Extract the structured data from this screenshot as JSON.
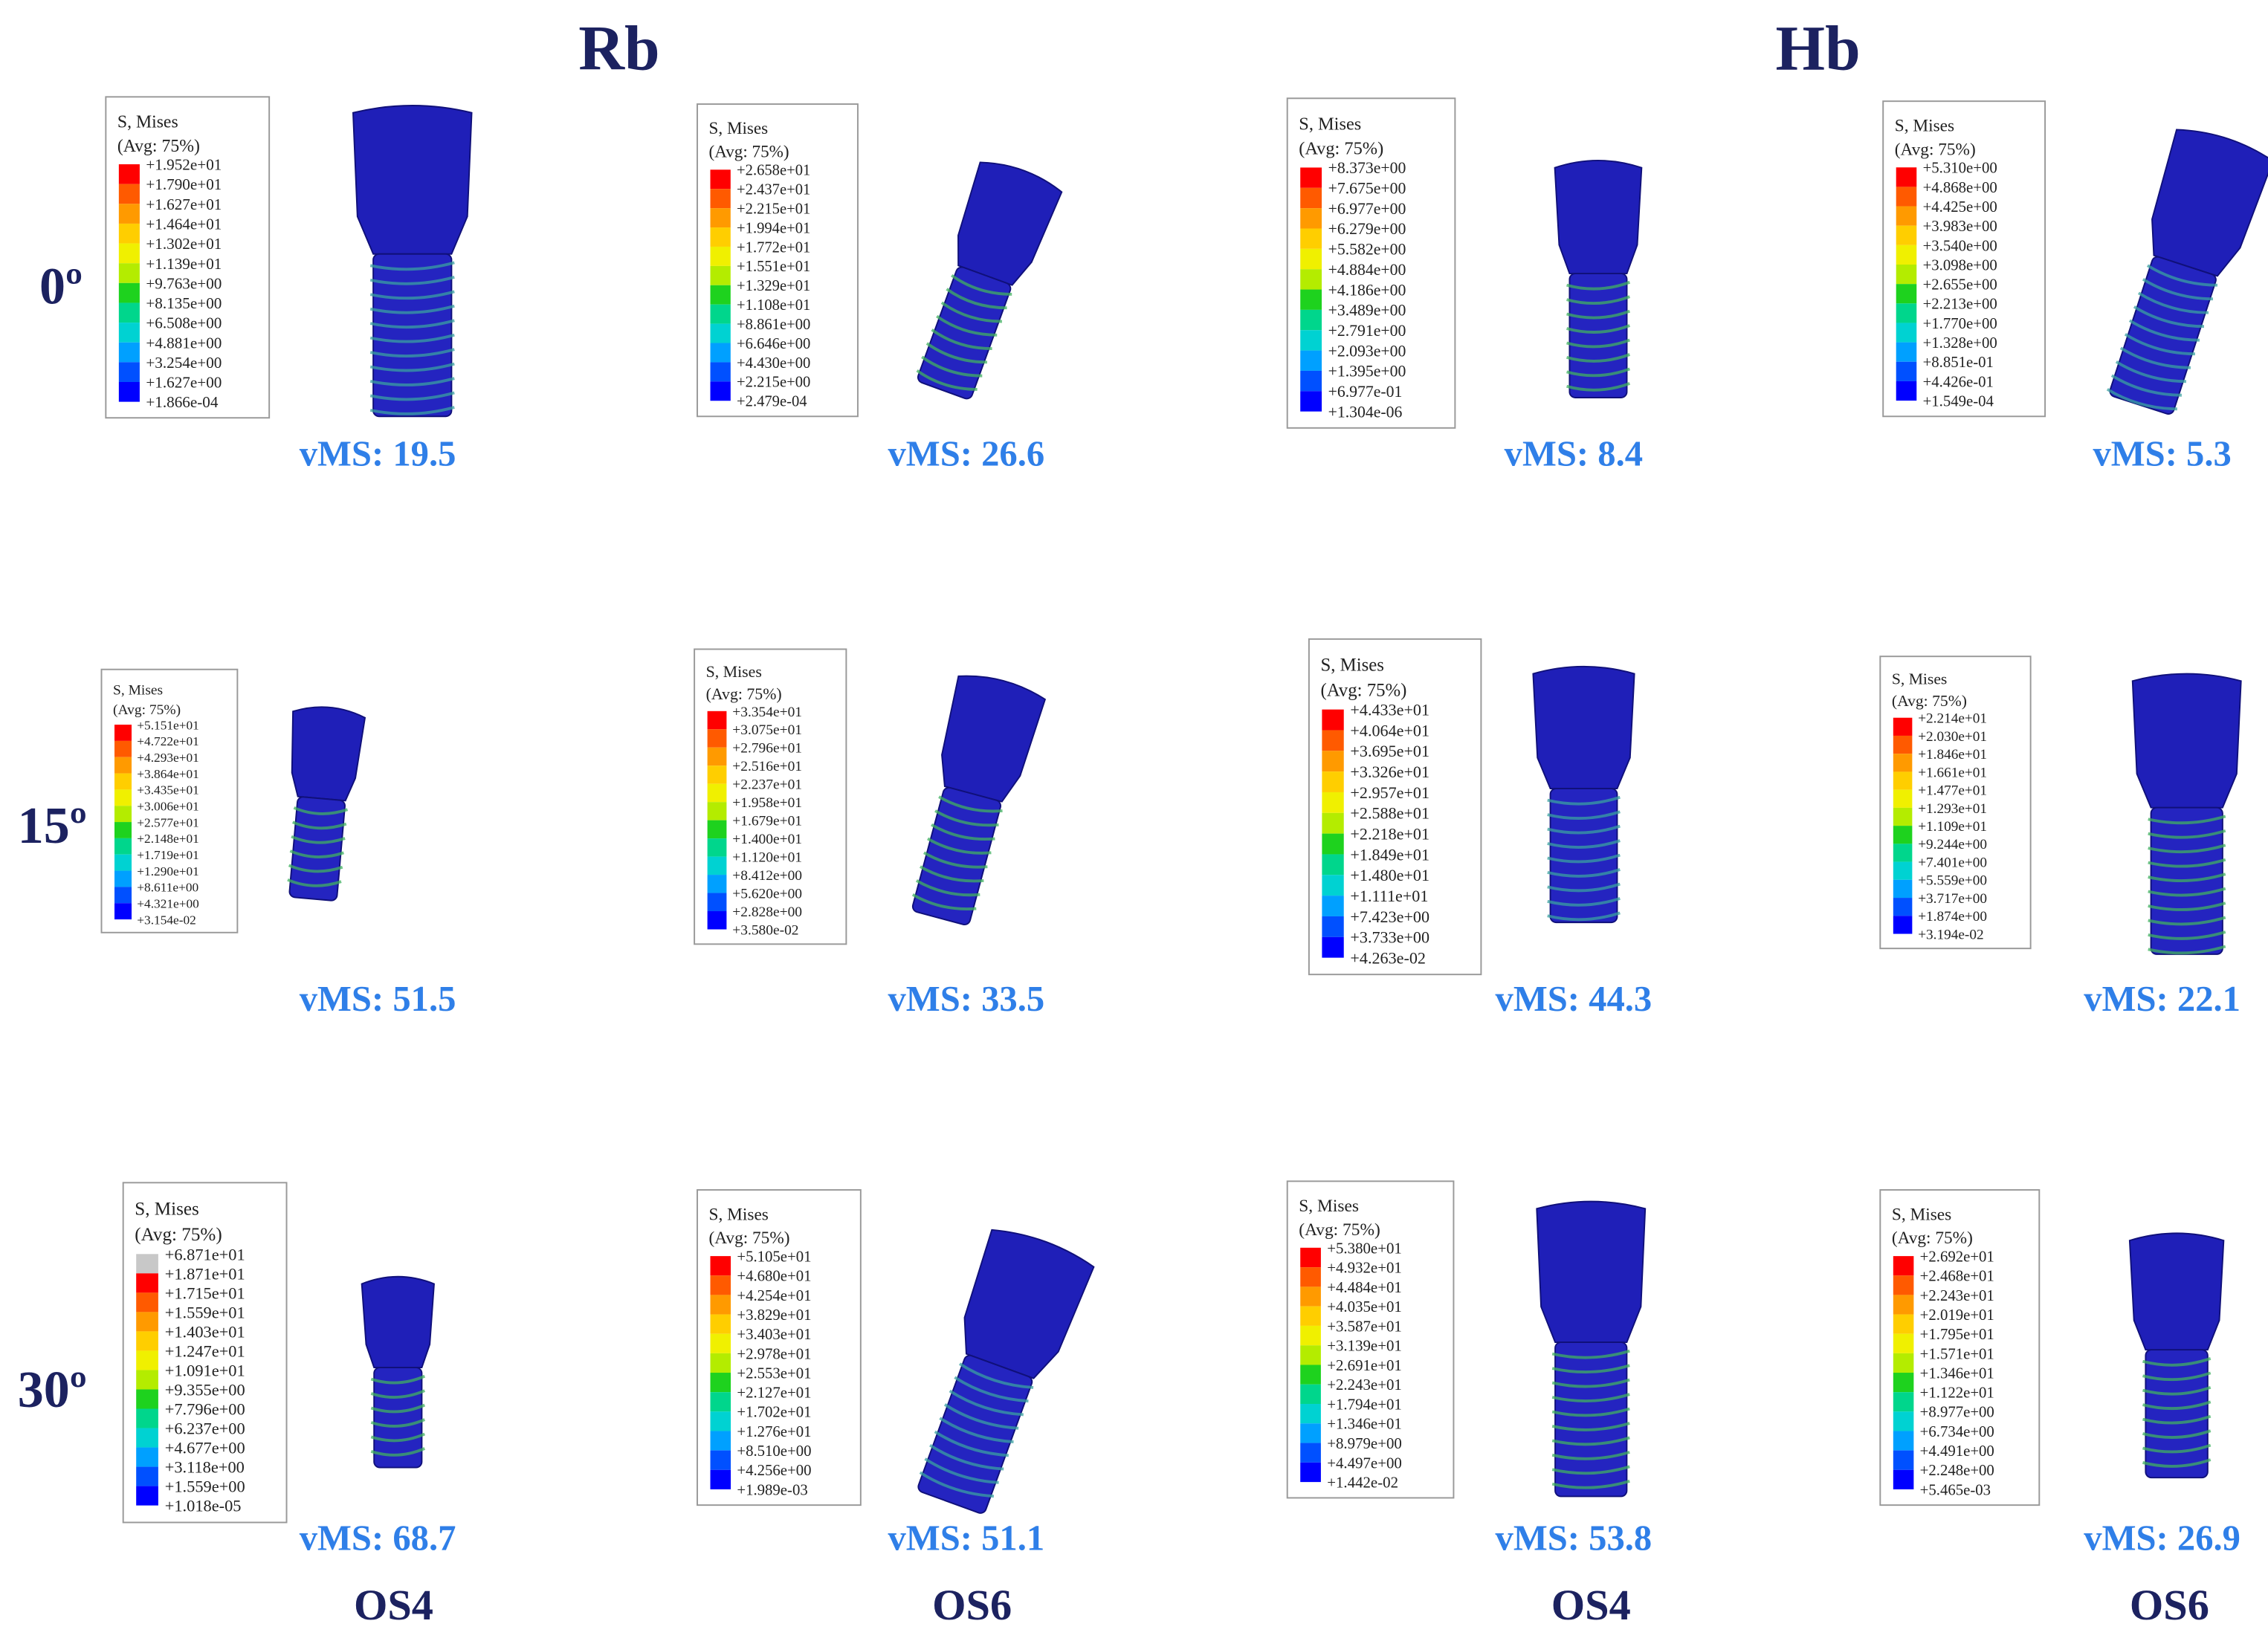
{
  "header": {
    "groups": [
      "Rb",
      "Hb"
    ]
  },
  "row_labels": [
    "0º",
    "15º",
    "30º"
  ],
  "column_labels": [
    "OS4",
    "OS6",
    "OS4",
    "OS6"
  ],
  "panels": [
    {
      "legend_title": "S, Mises",
      "legend_subtitle": "(Avg: 75%)",
      "legend_values": [
        "+1.952e+01",
        "+1.790e+01",
        "+1.627e+01",
        "+1.464e+01",
        "+1.302e+01",
        "+1.139e+01",
        "+9.763e+00",
        "+8.135e+00",
        "+6.508e+00",
        "+4.881e+00",
        "+3.254e+00",
        "+1.627e+00",
        "+1.866e-04"
      ],
      "label": "vMS: 19.5"
    },
    {
      "legend_title": "S, Mises",
      "legend_subtitle": "(Avg: 75%)",
      "legend_values": [
        "+2.658e+01",
        "+2.437e+01",
        "+2.215e+01",
        "+1.994e+01",
        "+1.772e+01",
        "+1.551e+01",
        "+1.329e+01",
        "+1.108e+01",
        "+8.861e+00",
        "+6.646e+00",
        "+4.430e+00",
        "+2.215e+00",
        "+2.479e-04"
      ],
      "label": "vMS: 26.6"
    },
    {
      "legend_title": "S, Mises",
      "legend_subtitle": "(Avg: 75%)",
      "legend_values": [
        "+8.373e+00",
        "+7.675e+00",
        "+6.977e+00",
        "+6.279e+00",
        "+5.582e+00",
        "+4.884e+00",
        "+4.186e+00",
        "+3.489e+00",
        "+2.791e+00",
        "+2.093e+00",
        "+1.395e+00",
        "+6.977e-01",
        "+1.304e-06"
      ],
      "label": "vMS: 8.4"
    },
    {
      "legend_title": "S, Mises",
      "legend_subtitle": "(Avg: 75%)",
      "legend_values": [
        "+5.310e+00",
        "+4.868e+00",
        "+4.425e+00",
        "+3.983e+00",
        "+3.540e+00",
        "+3.098e+00",
        "+2.655e+00",
        "+2.213e+00",
        "+1.770e+00",
        "+1.328e+00",
        "+8.851e-01",
        "+4.426e-01",
        "+1.549e-04"
      ],
      "label": "vMS: 5.3"
    },
    {
      "legend_title": "S, Mises",
      "legend_subtitle": "(Avg: 75%)",
      "legend_values": [
        "+5.151e+01",
        "+4.722e+01",
        "+4.293e+01",
        "+3.864e+01",
        "+3.435e+01",
        "+3.006e+01",
        "+2.577e+01",
        "+2.148e+01",
        "+1.719e+01",
        "+1.290e+01",
        "+8.611e+00",
        "+4.321e+00",
        "+3.154e-02"
      ],
      "label": "vMS: 51.5"
    },
    {
      "legend_title": "S, Mises",
      "legend_subtitle": "(Avg: 75%)",
      "legend_values": [
        "+3.354e+01",
        "+3.075e+01",
        "+2.796e+01",
        "+2.516e+01",
        "+2.237e+01",
        "+1.958e+01",
        "+1.679e+01",
        "+1.400e+01",
        "+1.120e+01",
        "+8.412e+00",
        "+5.620e+00",
        "+2.828e+00",
        "+3.580e-02"
      ],
      "label": "vMS: 33.5"
    },
    {
      "legend_title": "S, Mises",
      "legend_subtitle": "(Avg: 75%)",
      "legend_values": [
        "+4.433e+01",
        "+4.064e+01",
        "+3.695e+01",
        "+3.326e+01",
        "+2.957e+01",
        "+2.588e+01",
        "+2.218e+01",
        "+1.849e+01",
        "+1.480e+01",
        "+1.111e+01",
        "+7.423e+00",
        "+3.733e+00",
        "+4.263e-02"
      ],
      "label": "vMS: 44.3"
    },
    {
      "legend_title": "S, Mises",
      "legend_subtitle": "(Avg: 75%)",
      "legend_values": [
        "+2.214e+01",
        "+2.030e+01",
        "+1.846e+01",
        "+1.661e+01",
        "+1.477e+01",
        "+1.293e+01",
        "+1.109e+01",
        "+9.244e+00",
        "+7.401e+00",
        "+5.559e+00",
        "+3.717e+00",
        "+1.874e+00",
        "+3.194e-02"
      ],
      "label": "vMS: 22.1"
    },
    {
      "legend_title": "S, Mises",
      "legend_subtitle": "(Avg: 75%)",
      "legend_values": [
        "+6.871e+01",
        "+1.871e+01",
        "+1.715e+01",
        "+1.559e+01",
        "+1.403e+01",
        "+1.247e+01",
        "+1.091e+01",
        "+9.355e+00",
        "+7.796e+00",
        "+6.237e+00",
        "+4.677e+00",
        "+3.118e+00",
        "+1.559e+00",
        "+1.018e-05"
      ],
      "label": "vMS: 68.7"
    },
    {
      "legend_title": "S, Mises",
      "legend_subtitle": "(Avg: 75%)",
      "legend_values": [
        "+5.105e+01",
        "+4.680e+01",
        "+4.254e+01",
        "+3.829e+01",
        "+3.403e+01",
        "+2.978e+01",
        "+2.553e+01",
        "+2.127e+01",
        "+1.702e+01",
        "+1.276e+01",
        "+8.510e+00",
        "+4.256e+00",
        "+1.989e-03"
      ],
      "label": "vMS: 51.1"
    },
    {
      "legend_title": "S, Mises",
      "legend_subtitle": "(Avg: 75%)",
      "legend_values": [
        "+5.380e+01",
        "+4.932e+01",
        "+4.484e+01",
        "+4.035e+01",
        "+3.587e+01",
        "+3.139e+01",
        "+2.691e+01",
        "+2.243e+01",
        "+1.794e+01",
        "+1.346e+01",
        "+8.979e+00",
        "+4.497e+00",
        "+1.442e-02"
      ],
      "label": "vMS: 53.8"
    },
    {
      "legend_title": "S, Mises",
      "legend_subtitle": "(Avg: 75%)",
      "legend_values": [
        "+2.692e+01",
        "+2.468e+01",
        "+2.243e+01",
        "+2.019e+01",
        "+1.795e+01",
        "+1.571e+01",
        "+1.346e+01",
        "+1.122e+01",
        "+8.977e+00",
        "+6.734e+00",
        "+4.491e+00",
        "+2.248e+00",
        "+5.465e-03"
      ],
      "label": "vMS: 26.9"
    }
  ]
}
